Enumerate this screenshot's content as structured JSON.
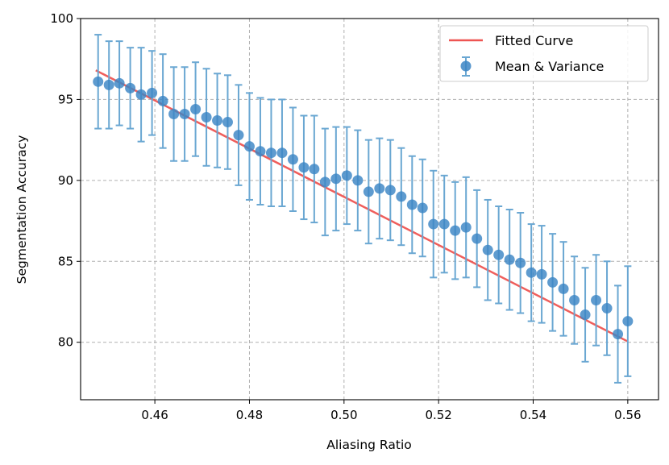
{
  "chart_data": {
    "type": "scatter",
    "title": "",
    "xlabel": "Aliasing Ratio",
    "ylabel": "Segmentation Accuracy",
    "xlim": [
      0.4443,
      0.5665
    ],
    "ylim": [
      76.45,
      100
    ],
    "xticks": [
      0.46,
      0.48,
      0.5,
      0.52,
      0.54,
      0.56
    ],
    "xtick_labels": [
      "0.46",
      "0.48",
      "0.50",
      "0.52",
      "0.54",
      "0.56"
    ],
    "yticks": [
      80,
      85,
      90,
      95,
      100
    ],
    "ytick_labels": [
      "80",
      "85",
      "90",
      "95",
      "100"
    ],
    "grid": true,
    "legend": {
      "position": "top-right",
      "entries": [
        "Fitted Curve",
        "Mean & Variance"
      ]
    },
    "colors": {
      "points": "#3b85c4",
      "errorbars": "#6aa7d2",
      "fit": "#ee5552",
      "grid": "#b0b0b0"
    },
    "fitted_curve": {
      "name": "Fitted Curve",
      "x": [
        0.4475,
        0.56
      ],
      "y": [
        96.8,
        80.05
      ]
    },
    "series": [
      {
        "name": "Mean & Variance",
        "x": [
          0.448,
          0.4503,
          0.4525,
          0.4548,
          0.4571,
          0.4594,
          0.4617,
          0.464,
          0.4663,
          0.4686,
          0.4709,
          0.4732,
          0.4754,
          0.4777,
          0.48,
          0.4823,
          0.4846,
          0.4869,
          0.4892,
          0.4915,
          0.4937,
          0.496,
          0.4983,
          0.5006,
          0.5029,
          0.5052,
          0.5075,
          0.5098,
          0.5121,
          0.5144,
          0.5166,
          0.5189,
          0.5212,
          0.5235,
          0.5258,
          0.5281,
          0.5304,
          0.5327,
          0.535,
          0.5373,
          0.5396,
          0.5418,
          0.5441,
          0.5464,
          0.5487,
          0.551,
          0.5533,
          0.5556,
          0.5579,
          0.56
        ],
        "y": [
          96.1,
          95.9,
          96.0,
          95.7,
          95.3,
          95.4,
          94.9,
          94.1,
          94.1,
          94.4,
          93.9,
          93.7,
          93.6,
          92.8,
          92.1,
          91.8,
          91.7,
          91.7,
          91.3,
          90.8,
          90.7,
          89.9,
          90.1,
          90.3,
          90.0,
          89.3,
          89.5,
          89.4,
          89.0,
          88.5,
          88.3,
          87.3,
          87.3,
          86.9,
          87.1,
          86.4,
          85.7,
          85.4,
          85.1,
          84.9,
          84.3,
          84.2,
          83.7,
          83.3,
          82.6,
          81.7,
          82.6,
          82.1,
          80.5,
          81.3
        ],
        "err": [
          2.9,
          2.7,
          2.6,
          2.5,
          2.9,
          2.6,
          2.9,
          2.9,
          2.9,
          2.9,
          3.0,
          2.9,
          2.9,
          3.1,
          3.3,
          3.3,
          3.3,
          3.3,
          3.2,
          3.2,
          3.3,
          3.3,
          3.2,
          3.0,
          3.1,
          3.2,
          3.1,
          3.1,
          3.0,
          3.0,
          3.0,
          3.3,
          3.0,
          3.0,
          3.1,
          3.0,
          3.1,
          3.0,
          3.1,
          3.1,
          3.0,
          3.0,
          3.0,
          2.9,
          2.7,
          2.9,
          2.8,
          2.9,
          3.0,
          3.4
        ]
      }
    ]
  }
}
